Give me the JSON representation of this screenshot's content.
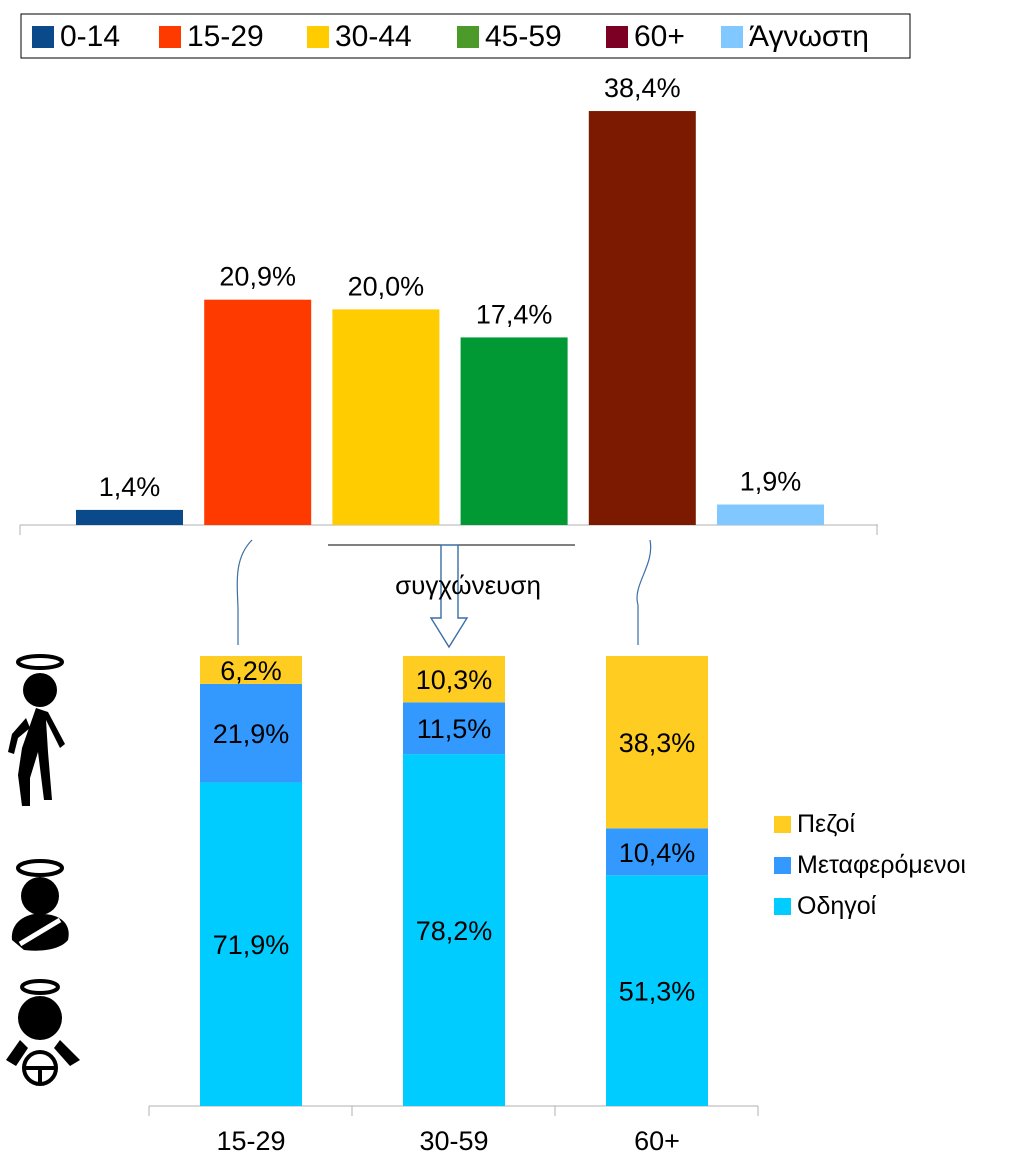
{
  "chart_data": [
    {
      "type": "bar",
      "categories": [
        "0-14",
        "15-29",
        "30-44",
        "45-59",
        "60+",
        "Άγνωστη"
      ],
      "values": [
        1.4,
        20.9,
        20.0,
        17.4,
        38.4,
        1.9
      ],
      "value_labels": [
        "1,4%",
        "20,9%",
        "20,0%",
        "17,4%",
        "38,4%",
        "1,9%"
      ],
      "colors": [
        "#0a4a8a",
        "#ff3a00",
        "#ffcc00",
        "#009933",
        "#7b1a00",
        "#80c8ff"
      ],
      "legend": {
        "placement": "top",
        "entries": [
          {
            "label": "0-14",
            "color": "#0a4a8a"
          },
          {
            "label": "15-29",
            "color": "#ff3a00"
          },
          {
            "label": "30-44",
            "color": "#ffcc00"
          },
          {
            "label": "45-59",
            "color": "#4c9a2a"
          },
          {
            "label": "60+",
            "color": "#7b0024"
          },
          {
            "label": "Άγνωστη",
            "color": "#80c8ff"
          }
        ]
      },
      "unit": "%",
      "ylim": [
        0,
        40
      ],
      "grid": false
    },
    {
      "type": "bar",
      "stacked": true,
      "categories": [
        "15-29",
        "30-59",
        "60+"
      ],
      "series": [
        {
          "name": "Οδηγοί",
          "color": "#00ccff",
          "values": [
            71.9,
            78.2,
            51.3
          ],
          "labels": [
            "71,9%",
            "78,2%",
            "51,3%"
          ]
        },
        {
          "name": "Μεταφερόμενοι",
          "color": "#3399ff",
          "values": [
            21.9,
            11.5,
            10.4
          ],
          "labels": [
            "21,9%",
            "11,5%",
            "10,4%"
          ]
        },
        {
          "name": "Πεζοί",
          "color": "#ffcc22",
          "values": [
            6.2,
            10.3,
            38.3
          ],
          "labels": [
            "6,2%",
            "10,3%",
            "38,3%"
          ]
        }
      ],
      "legend": {
        "placement": "right",
        "order": [
          "Πεζοί",
          "Μεταφερόμενοι",
          "Οδηγοί"
        ]
      },
      "ylim": [
        0,
        100
      ],
      "grid": false
    }
  ],
  "annotations": {
    "merge_label": "συγχώνευση"
  },
  "icons": [
    "pedestrian-icon",
    "passenger-icon",
    "driver-icon"
  ]
}
